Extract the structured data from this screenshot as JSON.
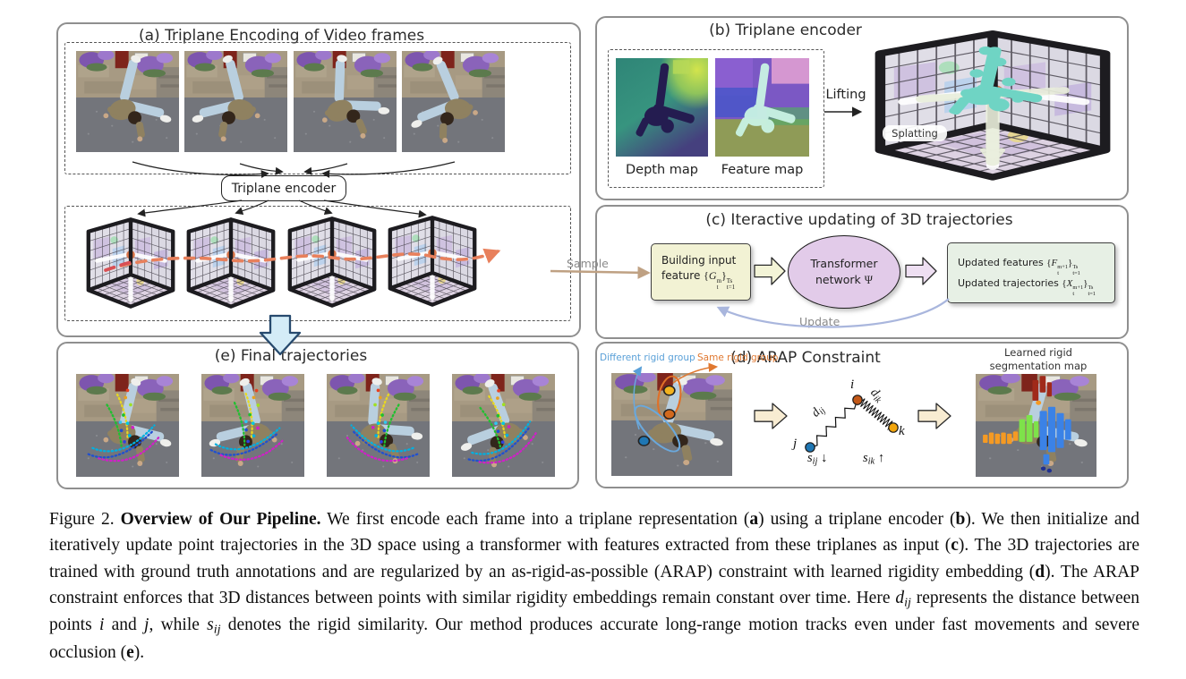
{
  "panel_a": {
    "title": "(a) Triplane Encoding of Video frames",
    "encoder_box": "Triplane encoder"
  },
  "panel_b": {
    "title": "(b) Triplane encoder",
    "depth_label": "Depth map",
    "feature_label": "Feature map",
    "lifting_label": "Lifting",
    "splatting_label": "Splatting"
  },
  "panel_c": {
    "title": "(c) Iteractive updating of 3D trajectories",
    "sample_label": "Sample",
    "update_label": "Update",
    "input_line1": "Building input",
    "input_line2_runs": [
      {
        "t": "feature "
      },
      {
        "t": "{",
        "s": "m"
      },
      {
        "t": "G",
        "s": "m i"
      },
      {
        "t": "m|t",
        "s": "stack"
      },
      {
        "t": "}",
        "s": "m"
      },
      {
        "t": "Ts|t=1",
        "s": "stack"
      }
    ],
    "transformer_line1": "Transformer",
    "transformer_line2_runs": [
      {
        "t": "network "
      },
      {
        "t": "Ψ",
        "s": "m"
      }
    ],
    "output_line1_runs": [
      {
        "t": "Updated features "
      },
      {
        "t": "{",
        "s": "m"
      },
      {
        "t": "F",
        "s": "m i"
      },
      {
        "t": "m+1|t",
        "s": "stack"
      },
      {
        "t": "}",
        "s": "m"
      },
      {
        "t": "Ts|t=1",
        "s": "stack"
      }
    ],
    "output_line2_runs": [
      {
        "t": "Updated trajectories "
      },
      {
        "t": "{",
        "s": "m"
      },
      {
        "t": "X",
        "s": "m i"
      },
      {
        "t": "m+1|t",
        "s": "stack"
      },
      {
        "t": "}",
        "s": "m"
      },
      {
        "t": "Ts|t=1",
        "s": "stack"
      }
    ]
  },
  "panel_d": {
    "title": "(d) ARAP Constraint",
    "different_group_label": "Different rigid group",
    "same_group_label": "Same rigid group",
    "seg_label_line1": "Learned rigid",
    "seg_label_line2": "segmentation map",
    "node_i_runs": [
      {
        "t": "i",
        "s": "m i"
      }
    ],
    "node_j_runs": [
      {
        "t": "j",
        "s": "m i"
      }
    ],
    "node_k_runs": [
      {
        "t": "k",
        "s": "m i"
      }
    ],
    "dij_runs": [
      {
        "t": "d",
        "s": "m i"
      },
      {
        "t": "ij",
        "s": "m i sub"
      }
    ],
    "dik_runs": [
      {
        "t": "d",
        "s": "m i"
      },
      {
        "t": "ik",
        "s": "m i sub"
      }
    ],
    "sij_runs": [
      {
        "t": "s",
        "s": "m i"
      },
      {
        "t": "ij",
        "s": "m i sub"
      },
      {
        "t": " ↓",
        "s": "m"
      }
    ],
    "sik_runs": [
      {
        "t": "s",
        "s": "m i"
      },
      {
        "t": "ik",
        "s": "m i sub"
      },
      {
        "t": " ↑",
        "s": "m"
      }
    ]
  },
  "panel_e": {
    "title": "(e) Final trajectories"
  },
  "caption": {
    "runs": [
      {
        "t": "Figure 2. "
      },
      {
        "t": "Overview of Our Pipeline.",
        "s": "b"
      },
      {
        "t": " We first encode each frame into a triplane representation ("
      },
      {
        "t": "a",
        "s": "b"
      },
      {
        "t": ") using a triplane encoder ("
      },
      {
        "t": "b",
        "s": "b"
      },
      {
        "t": "). We then initialize and iteratively update point trajectories in the 3D space using a transformer with features extracted from these triplanes as input ("
      },
      {
        "t": "c",
        "s": "b"
      },
      {
        "t": "). The 3D trajectories are trained with ground truth annotations and are regularized by an as-rigid-as-possible (ARAP) constraint with learned rigidity embedding ("
      },
      {
        "t": "d",
        "s": "b"
      },
      {
        "t": "). The ARAP constraint enforces that 3D distances between points with similar rigidity embeddings remain constant over time. Here "
      },
      {
        "t": "d",
        "s": "i"
      },
      {
        "t": "ij",
        "s": "sub i"
      },
      {
        "t": " represents the distance between points "
      },
      {
        "t": "i",
        "s": "i"
      },
      {
        "t": " and "
      },
      {
        "t": "j",
        "s": "i"
      },
      {
        "t": ", while "
      },
      {
        "t": "s",
        "s": "i"
      },
      {
        "t": "ij",
        "s": "sub i"
      },
      {
        "t": " denotes the rigid similarity. Our method produces accurate long-range motion tracks even under fast movements and severe occlusion ("
      },
      {
        "t": "e",
        "s": "b"
      },
      {
        "t": ")."
      }
    ]
  },
  "colors": {
    "trajectory_orange": "#e8805c",
    "trajectory_red": "#d84f55",
    "sample_arrow_tan": "#bfa183",
    "update_arrow_blue": "#a9b6dd",
    "down_arrow_fill": "#d4ecf7",
    "down_arrow_border": "#274a6e",
    "input_box_fill": "#f2f2d4",
    "transformer_fill": "#e2cbe9",
    "output_box_fill": "#e7f0e5",
    "different_group_blue": "#5aa0d8",
    "same_group_orange": "#e07830",
    "node_i": "#c35817",
    "node_j": "#1f77b4",
    "node_k": "#f2a50c"
  }
}
